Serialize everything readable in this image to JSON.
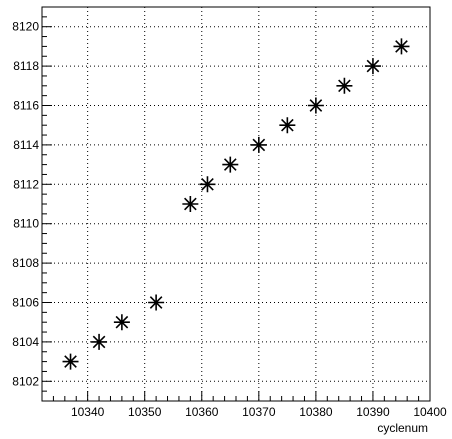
{
  "chart_data": {
    "type": "scatter",
    "title": "",
    "xlabel": "cyclenum",
    "ylabel": "",
    "xlim": [
      10332,
      10400
    ],
    "ylim": [
      8101,
      8121
    ],
    "grid": true,
    "marker": "star",
    "x_ticks": [
      10340,
      10350,
      10360,
      10370,
      10380,
      10390,
      10400
    ],
    "y_ticks": [
      8102,
      8104,
      8106,
      8108,
      8110,
      8112,
      8114,
      8116,
      8118,
      8120
    ],
    "series": [
      {
        "x": [
          10337,
          10342,
          10346,
          10352,
          10358,
          10361,
          10365,
          10370,
          10375,
          10380,
          10385,
          10390,
          10395
        ],
        "y": [
          8103,
          8104,
          8105,
          8106,
          8111,
          8112,
          8113,
          8114,
          8115,
          8116,
          8117,
          8118,
          8119
        ]
      }
    ],
    "colors": {
      "marker": "#000000",
      "axis": "#000000",
      "grid": "#000000"
    }
  }
}
